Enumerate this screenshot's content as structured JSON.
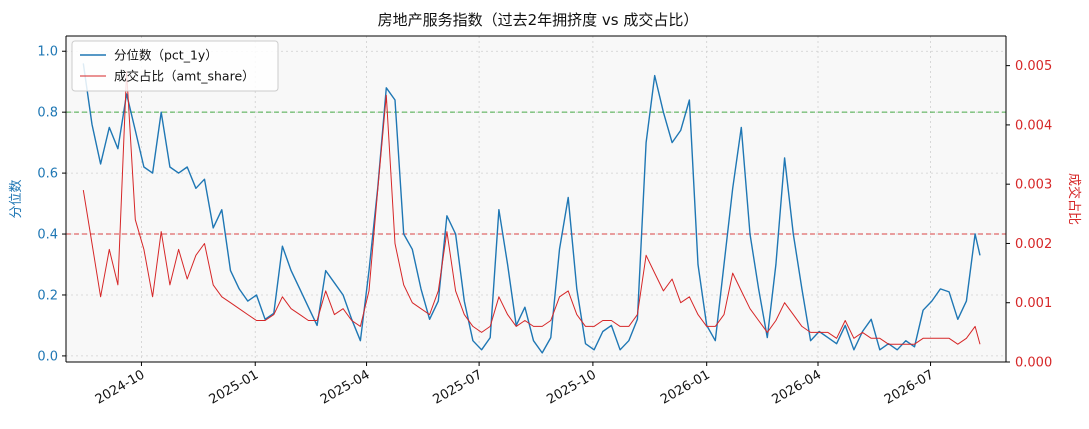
{
  "chart_data": {
    "type": "line",
    "title": "房地产服务指数（过去2年拥挤度 vs 成交占比）",
    "y_left_label": "分位数",
    "y_right_label": "成交占比",
    "x_ticks": [
      "2024-10",
      "2025-01",
      "2025-04",
      "2025-07",
      "2025-10",
      "2026-01",
      "2026-04",
      "2026-07"
    ],
    "y_left_ticks": [
      "0.0",
      "0.2",
      "0.4",
      "0.6",
      "0.8",
      "1.0"
    ],
    "y_right_ticks": [
      "0.000",
      "0.001",
      "0.002",
      "0.003",
      "0.004",
      "0.005"
    ],
    "y_left_lim": [
      -0.02,
      1.05
    ],
    "y_right_lim": [
      0.0,
      0.0055
    ],
    "x_range": [
      "2024-08-01",
      "2026-08-31"
    ],
    "grid": true,
    "legend_position": "top-left",
    "reference_lines": [
      {
        "axis": "left",
        "value": 0.8,
        "color": "#2ca02c",
        "style": "dashed"
      },
      {
        "axis": "left",
        "value": 0.4,
        "color": "#d62728",
        "style": "dashed"
      }
    ],
    "series": [
      {
        "name": "分位数（pct_1y）",
        "axis": "left",
        "color": "#1f77b4",
        "points": [
          [
            "2024-08-15",
            0.96
          ],
          [
            "2024-08-22",
            0.76
          ],
          [
            "2024-08-29",
            0.63
          ],
          [
            "2024-09-05",
            0.75
          ],
          [
            "2024-09-12",
            0.68
          ],
          [
            "2024-09-19",
            0.86
          ],
          [
            "2024-09-26",
            0.74
          ],
          [
            "2024-10-03",
            0.62
          ],
          [
            "2024-10-10",
            0.6
          ],
          [
            "2024-10-17",
            0.8
          ],
          [
            "2024-10-24",
            0.62
          ],
          [
            "2024-10-31",
            0.6
          ],
          [
            "2024-11-07",
            0.62
          ],
          [
            "2024-11-14",
            0.55
          ],
          [
            "2024-11-21",
            0.58
          ],
          [
            "2024-11-28",
            0.42
          ],
          [
            "2024-12-05",
            0.48
          ],
          [
            "2024-12-12",
            0.28
          ],
          [
            "2024-12-19",
            0.22
          ],
          [
            "2024-12-26",
            0.18
          ],
          [
            "2025-01-02",
            0.2
          ],
          [
            "2025-01-09",
            0.12
          ],
          [
            "2025-01-16",
            0.14
          ],
          [
            "2025-01-23",
            0.36
          ],
          [
            "2025-01-30",
            0.28
          ],
          [
            "2025-02-06",
            0.22
          ],
          [
            "2025-02-13",
            0.16
          ],
          [
            "2025-02-20",
            0.1
          ],
          [
            "2025-02-27",
            0.28
          ],
          [
            "2025-03-06",
            0.24
          ],
          [
            "2025-03-13",
            0.2
          ],
          [
            "2025-03-20",
            0.12
          ],
          [
            "2025-03-27",
            0.05
          ],
          [
            "2025-04-03",
            0.28
          ],
          [
            "2025-04-10",
            0.55
          ],
          [
            "2025-04-17",
            0.88
          ],
          [
            "2025-04-24",
            0.84
          ],
          [
            "2025-05-01",
            0.4
          ],
          [
            "2025-05-08",
            0.35
          ],
          [
            "2025-05-15",
            0.22
          ],
          [
            "2025-05-22",
            0.12
          ],
          [
            "2025-05-29",
            0.18
          ],
          [
            "2025-06-05",
            0.46
          ],
          [
            "2025-06-12",
            0.4
          ],
          [
            "2025-06-19",
            0.18
          ],
          [
            "2025-06-26",
            0.05
          ],
          [
            "2025-07-03",
            0.02
          ],
          [
            "2025-07-10",
            0.06
          ],
          [
            "2025-07-17",
            0.48
          ],
          [
            "2025-07-24",
            0.3
          ],
          [
            "2025-07-31",
            0.1
          ],
          [
            "2025-08-07",
            0.16
          ],
          [
            "2025-08-14",
            0.05
          ],
          [
            "2025-08-21",
            0.01
          ],
          [
            "2025-08-28",
            0.06
          ],
          [
            "2025-09-04",
            0.35
          ],
          [
            "2025-09-11",
            0.52
          ],
          [
            "2025-09-18",
            0.22
          ],
          [
            "2025-09-25",
            0.04
          ],
          [
            "2025-10-02",
            0.02
          ],
          [
            "2025-10-09",
            0.08
          ],
          [
            "2025-10-16",
            0.1
          ],
          [
            "2025-10-23",
            0.02
          ],
          [
            "2025-10-30",
            0.05
          ],
          [
            "2025-11-06",
            0.12
          ],
          [
            "2025-11-13",
            0.7
          ],
          [
            "2025-11-20",
            0.92
          ],
          [
            "2025-11-27",
            0.8
          ],
          [
            "2025-12-04",
            0.7
          ],
          [
            "2025-12-11",
            0.74
          ],
          [
            "2025-12-18",
            0.84
          ],
          [
            "2025-12-25",
            0.3
          ],
          [
            "2026-01-01",
            0.1
          ],
          [
            "2026-01-08",
            0.05
          ],
          [
            "2026-01-15",
            0.3
          ],
          [
            "2026-01-22",
            0.55
          ],
          [
            "2026-01-29",
            0.75
          ],
          [
            "2026-02-05",
            0.4
          ],
          [
            "2026-02-12",
            0.22
          ],
          [
            "2026-02-19",
            0.06
          ],
          [
            "2026-02-26",
            0.3
          ],
          [
            "2026-03-05",
            0.65
          ],
          [
            "2026-03-12",
            0.4
          ],
          [
            "2026-03-19",
            0.22
          ],
          [
            "2026-03-26",
            0.05
          ],
          [
            "2026-04-02",
            0.08
          ],
          [
            "2026-04-09",
            0.06
          ],
          [
            "2026-04-16",
            0.04
          ],
          [
            "2026-04-23",
            0.1
          ],
          [
            "2026-04-30",
            0.02
          ],
          [
            "2026-05-07",
            0.08
          ],
          [
            "2026-05-14",
            0.12
          ],
          [
            "2026-05-21",
            0.02
          ],
          [
            "2026-05-28",
            0.04
          ],
          [
            "2026-06-04",
            0.02
          ],
          [
            "2026-06-11",
            0.05
          ],
          [
            "2026-06-18",
            0.03
          ],
          [
            "2026-06-25",
            0.15
          ],
          [
            "2026-07-02",
            0.18
          ],
          [
            "2026-07-09",
            0.22
          ],
          [
            "2026-07-16",
            0.21
          ],
          [
            "2026-07-23",
            0.12
          ],
          [
            "2026-07-30",
            0.18
          ],
          [
            "2026-08-06",
            0.4
          ],
          [
            "2026-08-10",
            0.33
          ]
        ]
      },
      {
        "name": "成交占比（amt_share）",
        "axis": "right",
        "color": "#d62728",
        "points": [
          [
            "2024-08-15",
            0.0029
          ],
          [
            "2024-08-22",
            0.002
          ],
          [
            "2024-08-29",
            0.0011
          ],
          [
            "2024-09-05",
            0.0019
          ],
          [
            "2024-09-12",
            0.0013
          ],
          [
            "2024-09-19",
            0.0049
          ],
          [
            "2024-09-26",
            0.0024
          ],
          [
            "2024-10-03",
            0.0019
          ],
          [
            "2024-10-10",
            0.0011
          ],
          [
            "2024-10-17",
            0.0022
          ],
          [
            "2024-10-24",
            0.0013
          ],
          [
            "2024-10-31",
            0.0019
          ],
          [
            "2024-11-07",
            0.0014
          ],
          [
            "2024-11-14",
            0.0018
          ],
          [
            "2024-11-21",
            0.002
          ],
          [
            "2024-11-28",
            0.0013
          ],
          [
            "2024-12-05",
            0.0011
          ],
          [
            "2024-12-12",
            0.001
          ],
          [
            "2024-12-19",
            0.0009
          ],
          [
            "2024-12-26",
            0.0008
          ],
          [
            "2025-01-02",
            0.0007
          ],
          [
            "2025-01-09",
            0.0007
          ],
          [
            "2025-01-16",
            0.0008
          ],
          [
            "2025-01-23",
            0.0011
          ],
          [
            "2025-01-30",
            0.0009
          ],
          [
            "2025-02-06",
            0.0008
          ],
          [
            "2025-02-13",
            0.0007
          ],
          [
            "2025-02-20",
            0.0007
          ],
          [
            "2025-02-27",
            0.0012
          ],
          [
            "2025-03-06",
            0.0008
          ],
          [
            "2025-03-13",
            0.0009
          ],
          [
            "2025-03-20",
            0.0007
          ],
          [
            "2025-03-27",
            0.0006
          ],
          [
            "2025-04-03",
            0.0012
          ],
          [
            "2025-04-10",
            0.0029
          ],
          [
            "2025-04-17",
            0.0045
          ],
          [
            "2025-04-24",
            0.002
          ],
          [
            "2025-05-01",
            0.0013
          ],
          [
            "2025-05-08",
            0.001
          ],
          [
            "2025-05-15",
            0.0009
          ],
          [
            "2025-05-22",
            0.0008
          ],
          [
            "2025-05-29",
            0.0012
          ],
          [
            "2025-06-05",
            0.0022
          ],
          [
            "2025-06-12",
            0.0012
          ],
          [
            "2025-06-19",
            0.0008
          ],
          [
            "2025-06-26",
            0.0006
          ],
          [
            "2025-07-03",
            0.0005
          ],
          [
            "2025-07-10",
            0.0006
          ],
          [
            "2025-07-17",
            0.0011
          ],
          [
            "2025-07-24",
            0.0008
          ],
          [
            "2025-07-31",
            0.0006
          ],
          [
            "2025-08-07",
            0.0007
          ],
          [
            "2025-08-14",
            0.0006
          ],
          [
            "2025-08-21",
            0.0006
          ],
          [
            "2025-08-28",
            0.0007
          ],
          [
            "2025-09-04",
            0.0011
          ],
          [
            "2025-09-11",
            0.0012
          ],
          [
            "2025-09-18",
            0.0008
          ],
          [
            "2025-09-25",
            0.0006
          ],
          [
            "2025-10-02",
            0.0006
          ],
          [
            "2025-10-09",
            0.0007
          ],
          [
            "2025-10-16",
            0.0007
          ],
          [
            "2025-10-23",
            0.0006
          ],
          [
            "2025-10-30",
            0.0006
          ],
          [
            "2025-11-06",
            0.0008
          ],
          [
            "2025-11-13",
            0.0018
          ],
          [
            "2025-11-20",
            0.0015
          ],
          [
            "2025-11-27",
            0.0012
          ],
          [
            "2025-12-04",
            0.0014
          ],
          [
            "2025-12-11",
            0.001
          ],
          [
            "2025-12-18",
            0.0011
          ],
          [
            "2025-12-25",
            0.0008
          ],
          [
            "2026-01-01",
            0.0006
          ],
          [
            "2026-01-08",
            0.0006
          ],
          [
            "2026-01-15",
            0.0008
          ],
          [
            "2026-01-22",
            0.0015
          ],
          [
            "2026-01-29",
            0.0012
          ],
          [
            "2026-02-05",
            0.0009
          ],
          [
            "2026-02-12",
            0.0007
          ],
          [
            "2026-02-19",
            0.0005
          ],
          [
            "2026-02-26",
            0.0007
          ],
          [
            "2026-03-05",
            0.001
          ],
          [
            "2026-03-12",
            0.0008
          ],
          [
            "2026-03-19",
            0.0006
          ],
          [
            "2026-03-26",
            0.0005
          ],
          [
            "2026-04-02",
            0.0005
          ],
          [
            "2026-04-09",
            0.0005
          ],
          [
            "2026-04-16",
            0.0004
          ],
          [
            "2026-04-23",
            0.0007
          ],
          [
            "2026-04-30",
            0.0004
          ],
          [
            "2026-05-07",
            0.0005
          ],
          [
            "2026-05-14",
            0.0004
          ],
          [
            "2026-05-21",
            0.0004
          ],
          [
            "2026-05-28",
            0.0003
          ],
          [
            "2026-06-04",
            0.0003
          ],
          [
            "2026-06-11",
            0.0003
          ],
          [
            "2026-06-18",
            0.0003
          ],
          [
            "2026-06-25",
            0.0004
          ],
          [
            "2026-07-02",
            0.0004
          ],
          [
            "2026-07-09",
            0.0004
          ],
          [
            "2026-07-16",
            0.0004
          ],
          [
            "2026-07-23",
            0.0003
          ],
          [
            "2026-07-30",
            0.0004
          ],
          [
            "2026-08-06",
            0.0006
          ],
          [
            "2026-08-10",
            0.0003
          ]
        ]
      }
    ]
  }
}
